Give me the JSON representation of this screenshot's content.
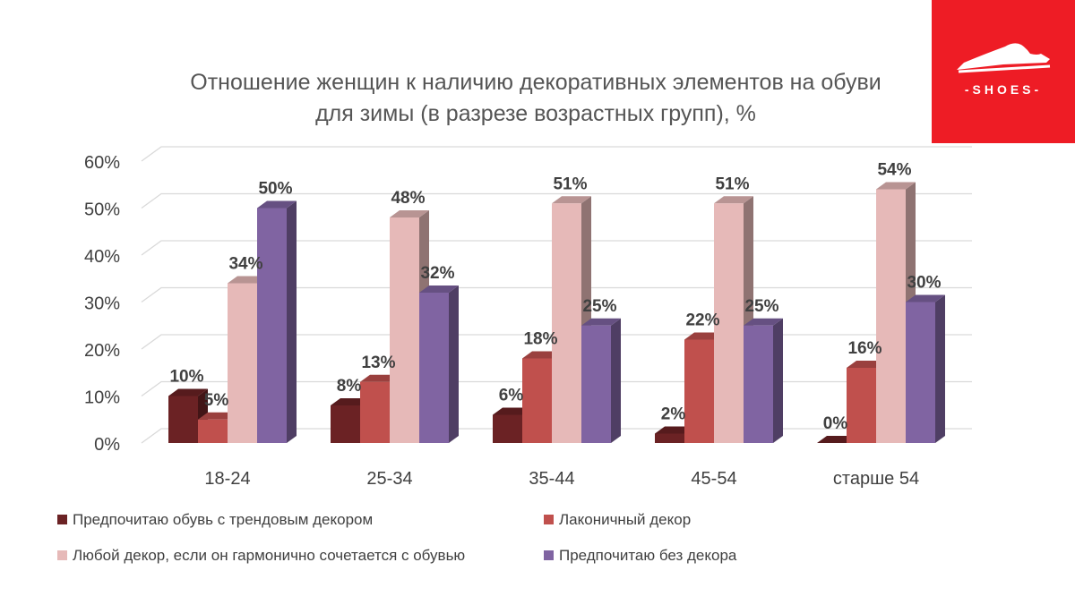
{
  "brand": {
    "logo_text": "-SHOES-",
    "color": "#ee1c25"
  },
  "chart_data": {
    "type": "bar",
    "title": [
      "Отношение женщин к наличию декоративных элементов на обуви",
      "для зимы (в разрезе возрастных групп), %"
    ],
    "categories": [
      "18-24",
      "25-34",
      "35-44",
      "45-54",
      "старше 54"
    ],
    "ylim": [
      0,
      60
    ],
    "yticks": [
      "0%",
      "10%",
      "20%",
      "30%",
      "40%",
      "50%",
      "60%"
    ],
    "grid": true,
    "legend_position": "bottom",
    "series": [
      {
        "name": "Предпочитаю обувь с трендовым декором",
        "color": "#6b2224",
        "values": [
          10,
          8,
          6,
          2,
          0
        ],
        "labels": [
          "10%",
          "8%",
          "6%",
          "2%",
          "0%"
        ]
      },
      {
        "name": "Лаконичный декор",
        "color": "#c0504d",
        "values": [
          5,
          13,
          18,
          22,
          16
        ],
        "labels": [
          "5%",
          "13%",
          "18%",
          "22%",
          "16%"
        ]
      },
      {
        "name": "Любой декор, если он гармонично сочетается с обувью",
        "color": "#e6b9b8",
        "values": [
          34,
          48,
          51,
          51,
          54
        ],
        "labels": [
          "34%",
          "48%",
          "51%",
          "51%",
          "54%"
        ]
      },
      {
        "name": "Предпочитаю без декора",
        "color": "#8064a2",
        "values": [
          50,
          32,
          25,
          25,
          30
        ],
        "labels": [
          "50%",
          "32%",
          "25%",
          "25%",
          "30%"
        ]
      }
    ]
  }
}
